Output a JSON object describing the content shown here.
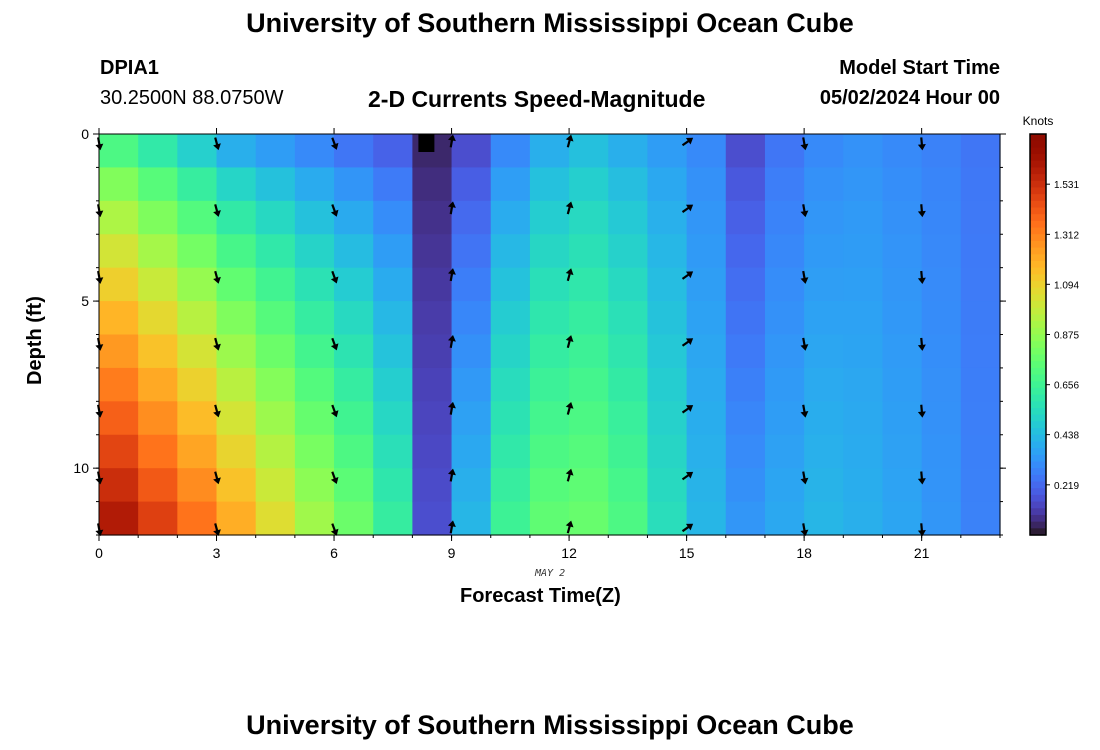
{
  "page": {
    "title": "University of Southern Mississippi Ocean Cube",
    "footer_title": "University of Southern Mississippi Ocean Cube",
    "station_id": "DPIA1",
    "station_coords": "30.2500N  88.0750W",
    "plot_title": "2-D Currents Speed-Magnitude",
    "model_start_label": "Model Start Time",
    "model_start_value": "05/02/2024 Hour 00"
  },
  "chart_data": {
    "type": "heatmap",
    "title": "2-D Currents Speed-Magnitude",
    "xlabel": "Forecast Time(Z)",
    "ylabel": "Depth (ft)",
    "x_sublabel": "MAY 2",
    "xlim": [
      0,
      23
    ],
    "ylim": [
      0,
      12
    ],
    "y_inverted": true,
    "x_ticks": [
      0,
      3,
      6,
      9,
      12,
      15,
      18,
      21
    ],
    "x_tick_labels": [
      "0",
      "3",
      "6",
      "9",
      "12",
      "15",
      "18",
      "21"
    ],
    "y_ticks": [
      0,
      5,
      10
    ],
    "y_tick_labels": [
      "0",
      "5",
      "10"
    ],
    "colorbar": {
      "label": "Knots",
      "min": 0,
      "max": 1.75,
      "tick_values": [
        0.219,
        0.438,
        0.656,
        0.875,
        1.094,
        1.312,
        1.531
      ],
      "tick_labels": [
        "0.219",
        "0.438",
        "0.656",
        "0.875",
        "1.094",
        "1.312",
        "1.531"
      ]
    },
    "time_bins": 23,
    "depth_bins": 12,
    "surface_speed": [
      0.7,
      0.6,
      0.5,
      0.4,
      0.35,
      0.3,
      0.25,
      0.2,
      0.05,
      0.15,
      0.3,
      0.4,
      0.45,
      0.4,
      0.35,
      0.3,
      0.15,
      0.25,
      0.3,
      0.32,
      0.3,
      0.28,
      0.25
    ],
    "bottom_speed": [
      1.6,
      1.48,
      1.35,
      1.2,
      1.05,
      0.9,
      0.78,
      0.62,
      0.15,
      0.42,
      0.65,
      0.75,
      0.77,
      0.7,
      0.55,
      0.42,
      0.33,
      0.38,
      0.42,
      0.4,
      0.37,
      0.33,
      0.28
    ],
    "vectors": {
      "times": [
        0,
        3,
        6,
        9,
        12,
        15,
        18,
        21
      ],
      "depths": [
        0.25,
        2.25,
        4.25,
        6.25,
        8.25,
        10.25,
        11.8
      ],
      "direction_deg": [
        170,
        165,
        160,
        10,
        15,
        55,
        170,
        175
      ]
    }
  }
}
